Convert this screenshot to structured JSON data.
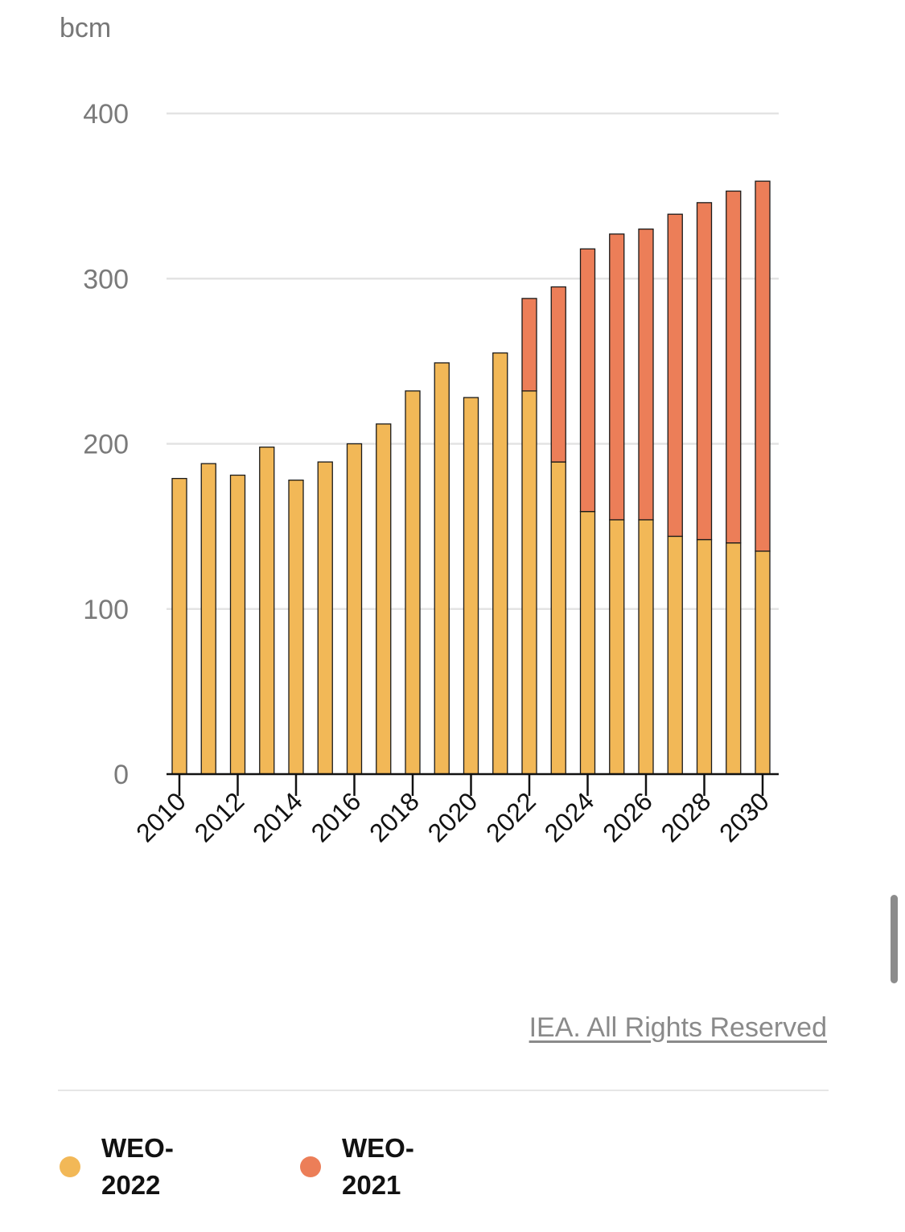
{
  "chart_data": {
    "type": "bar",
    "stacked": true,
    "unit": "bcm",
    "x": [
      2010,
      2011,
      2012,
      2013,
      2014,
      2015,
      2016,
      2017,
      2018,
      2019,
      2020,
      2021,
      2022,
      2023,
      2024,
      2025,
      2026,
      2027,
      2028,
      2029,
      2030
    ],
    "x_tick_labels": [
      "2010",
      "2012",
      "2014",
      "2016",
      "2018",
      "2020",
      "2022",
      "2024",
      "2026",
      "2028",
      "2030"
    ],
    "y_ticks": [
      0,
      100,
      200,
      300,
      400
    ],
    "ylim": [
      0,
      400
    ],
    "grid": true,
    "series": [
      {
        "name": "WEO-2022",
        "color": "#f2b857",
        "values": [
          179,
          188,
          181,
          198,
          178,
          189,
          200,
          212,
          232,
          249,
          228,
          255,
          232,
          189,
          159,
          154,
          154,
          144,
          142,
          140,
          135
        ]
      },
      {
        "name": "WEO-2021",
        "color": "#ec7e58",
        "values": [
          0,
          0,
          0,
          0,
          0,
          0,
          0,
          0,
          0,
          0,
          0,
          0,
          56,
          106,
          159,
          173,
          176,
          195,
          204,
          213,
          224
        ]
      }
    ]
  },
  "credit": "IEA. All Rights Reserved",
  "legend": [
    {
      "label": "WEO-2022",
      "color": "#f2b857"
    },
    {
      "label": "WEO-2021",
      "color": "#ec7e58"
    }
  ]
}
